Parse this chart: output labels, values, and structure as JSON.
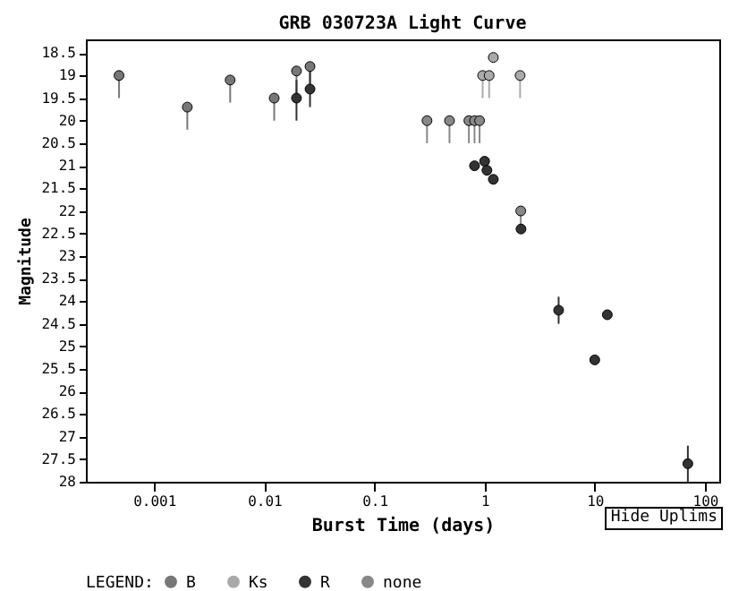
{
  "chart_data": {
    "type": "scatter",
    "title": "GRB 030723A Light Curve",
    "xlabel": "Burst Time (days)",
    "ylabel": "Magnitude",
    "legend_title": "LEGEND:",
    "annotations": [
      "Hide Uplims"
    ],
    "log": "x",
    "grid": false,
    "legend": "bottom",
    "marker": "circle",
    "xlim": [
      0.00024,
      135
    ],
    "xticks": [
      {
        "value": 0.001,
        "label": "0.001"
      },
      {
        "value": 0.01,
        "label": "0.01"
      },
      {
        "value": 0.1,
        "label": "0.1"
      },
      1,
      10,
      100
    ],
    "ylim": [
      28,
      18.2
    ],
    "yticks": [
      18.5,
      19,
      19.5,
      20,
      20.5,
      21,
      21.5,
      22,
      22.5,
      23,
      23.5,
      24,
      24.5,
      25,
      25.5,
      26,
      26.5,
      27,
      27.5,
      28
    ],
    "series": [
      {
        "name": "B",
        "color": "#777777",
        "x": [
          0.00048,
          0.002,
          0.0049,
          0.0123,
          0.0196,
          0.026
        ],
        "values": [
          19.0,
          19.7,
          19.1,
          19.5,
          18.9,
          18.8
        ],
        "errors": [
          [
            19.0,
            19.5
          ],
          [
            19.7,
            20.2
          ],
          [
            19.1,
            19.6
          ],
          [
            19.5,
            20.0
          ],
          [
            18.9,
            19.4
          ],
          [
            18.8,
            19.3
          ]
        ]
      },
      {
        "name": "Ks",
        "color": "#aaaaaa",
        "x": [
          0.96,
          1.1,
          1.2,
          2.1
        ],
        "values": [
          19.0,
          19.0,
          18.6,
          19.0
        ],
        "errors": [
          [
            19.0,
            19.5
          ],
          [
            19.0,
            19.5
          ],
          null,
          [
            19.0,
            19.5
          ]
        ]
      },
      {
        "name": "R",
        "color": "#333333",
        "x": [
          0.0196,
          0.026,
          0.81,
          1.0,
          1.05,
          1.2,
          2.14,
          4.7,
          10,
          13,
          70
        ],
        "values": [
          19.5,
          19.3,
          21.0,
          20.9,
          21.1,
          21.3,
          22.4,
          24.2,
          25.3,
          24.3,
          27.6
        ],
        "errors": [
          [
            19.1,
            20.0
          ],
          [
            18.9,
            19.7
          ],
          null,
          null,
          null,
          null,
          null,
          0.3,
          null,
          null,
          [
            27.2,
            28
          ]
        ]
      },
      {
        "name": "none",
        "color": "#888888",
        "x": [
          0.3,
          0.48,
          0.72,
          0.81,
          0.9,
          2.13
        ],
        "values": [
          20.0,
          20.0,
          20.0,
          20.0,
          20.0,
          22.0
        ],
        "errors": [
          [
            20.0,
            20.5
          ],
          [
            20.0,
            20.5
          ],
          [
            20.0,
            20.5
          ],
          [
            20.0,
            20.5
          ],
          [
            20.0,
            20.5
          ],
          [
            22.0,
            22.4
          ]
        ]
      }
    ]
  }
}
